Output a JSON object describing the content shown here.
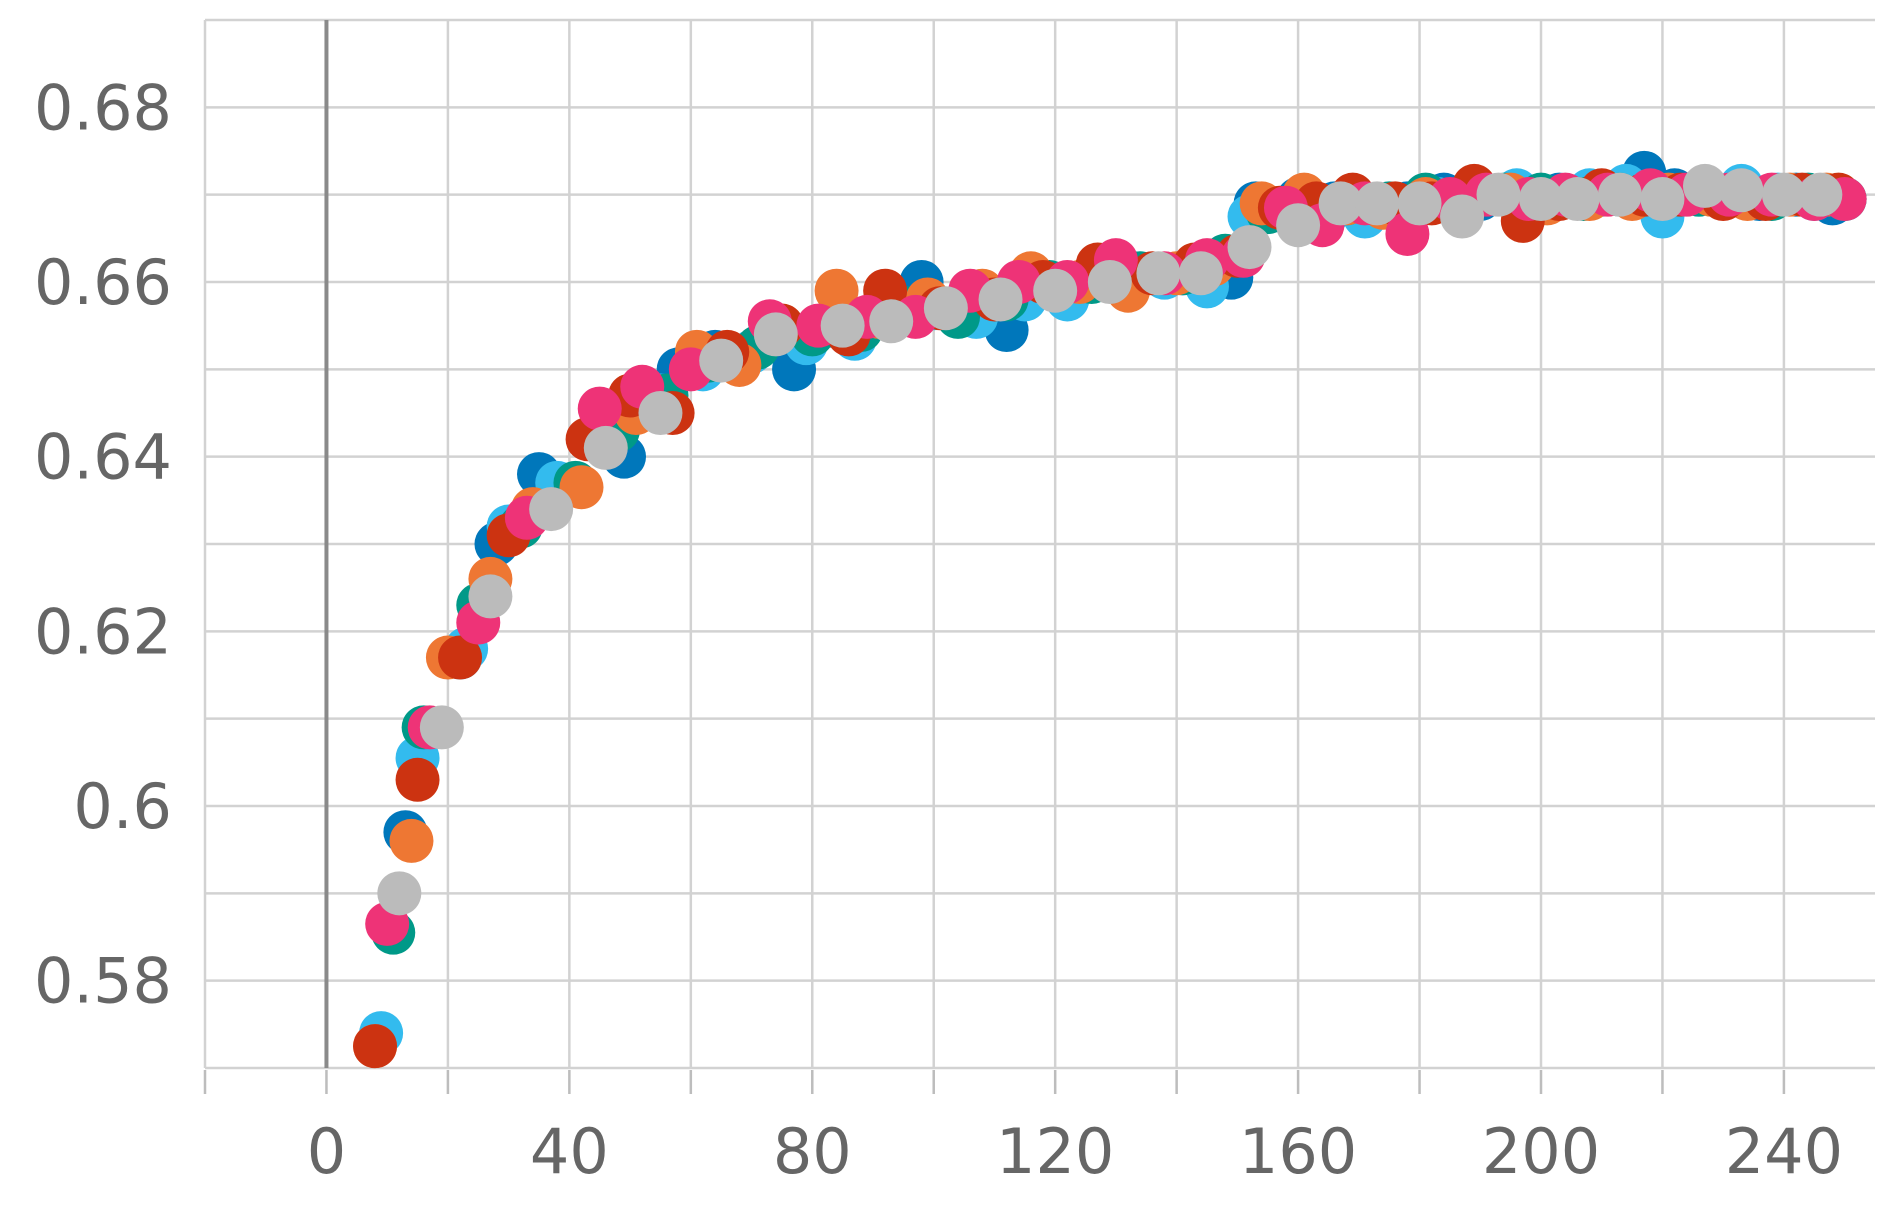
{
  "chart_data": {
    "type": "scatter",
    "title": "",
    "xlabel": "",
    "ylabel": "",
    "xlim": [
      -20,
      255
    ],
    "ylim": [
      0.57,
      0.69
    ],
    "x_ticks": [
      0,
      40,
      80,
      120,
      160,
      200,
      240
    ],
    "x_tick_labels": [
      "0",
      "40",
      "80",
      "120",
      "160",
      "200",
      "240"
    ],
    "y_ticks": [
      0.58,
      0.6,
      0.62,
      0.64,
      0.66,
      0.68
    ],
    "y_tick_labels": [
      "0.58",
      "0.6",
      "0.62",
      "0.64",
      "0.66",
      "0.68"
    ],
    "grid": true,
    "legend": "none",
    "series": [
      {
        "color": "#0077BB",
        "x": [
          13,
          22,
          28,
          35,
          49,
          53,
          58,
          64,
          72,
          77,
          83,
          90,
          98,
          103,
          112,
          118,
          125,
          133,
          141,
          149,
          153,
          160,
          166,
          172,
          178,
          184,
          190,
          197,
          203,
          210,
          217,
          222,
          229,
          236,
          242,
          248
        ],
        "y": [
          0.597,
          0.617,
          0.63,
          0.638,
          0.64,
          0.647,
          0.65,
          0.652,
          0.653,
          0.65,
          0.655,
          0.656,
          0.66,
          0.657,
          0.6545,
          0.66,
          0.66,
          0.661,
          0.661,
          0.6605,
          0.669,
          0.6695,
          0.669,
          0.6685,
          0.669,
          0.67,
          0.6695,
          0.67,
          0.67,
          0.67,
          0.6725,
          0.6705,
          0.67,
          0.6695,
          0.67,
          0.669
        ]
      },
      {
        "color": "#33BBEE",
        "x": [
          9,
          15,
          23,
          30,
          38,
          46,
          55,
          62,
          70,
          79,
          87,
          94,
          100,
          107,
          115,
          122,
          130,
          138,
          145,
          152,
          158,
          165,
          171,
          177,
          183,
          190,
          196,
          202,
          208,
          214,
          220,
          226,
          233,
          239,
          245,
          250
        ],
        "y": [
          0.574,
          0.6055,
          0.618,
          0.632,
          0.637,
          0.643,
          0.647,
          0.65,
          0.652,
          0.653,
          0.6535,
          0.656,
          0.657,
          0.656,
          0.658,
          0.658,
          0.66,
          0.6605,
          0.6595,
          0.6675,
          0.668,
          0.668,
          0.6675,
          0.668,
          0.6695,
          0.67,
          0.6705,
          0.6695,
          0.6705,
          0.671,
          0.6675,
          0.67,
          0.671,
          0.67,
          0.6695,
          0.6695
        ]
      },
      {
        "color": "#009988",
        "x": [
          11,
          16,
          25,
          32,
          41,
          48,
          56,
          63,
          71,
          80,
          88,
          96,
          104,
          112,
          119,
          126,
          134,
          141,
          148,
          155,
          162,
          168,
          175,
          181,
          187,
          194,
          200,
          207,
          213,
          219,
          226,
          232,
          238,
          244,
          250
        ],
        "y": [
          0.5855,
          0.609,
          0.623,
          0.632,
          0.637,
          0.643,
          0.647,
          0.651,
          0.6525,
          0.654,
          0.6545,
          0.657,
          0.656,
          0.658,
          0.66,
          0.66,
          0.661,
          0.661,
          0.663,
          0.668,
          0.669,
          0.669,
          0.669,
          0.67,
          0.6695,
          0.67,
          0.67,
          0.6695,
          0.67,
          0.67,
          0.67,
          0.67,
          0.6695,
          0.67,
          0.6695
        ]
      },
      {
        "color": "#EE7733",
        "x": [
          8,
          14,
          20,
          27,
          34,
          42,
          51,
          61,
          68,
          75,
          84,
          91,
          99,
          108,
          116,
          124,
          132,
          140,
          146,
          154,
          161,
          168,
          174,
          181,
          188,
          195,
          201,
          208,
          215,
          221,
          228,
          234,
          241,
          247
        ],
        "y": [
          0.5725,
          0.596,
          0.617,
          0.626,
          0.634,
          0.6365,
          0.645,
          0.652,
          0.6505,
          0.655,
          0.659,
          0.656,
          0.658,
          0.659,
          0.661,
          0.66,
          0.659,
          0.661,
          0.662,
          0.669,
          0.67,
          0.669,
          0.6685,
          0.6695,
          0.67,
          0.67,
          0.669,
          0.6695,
          0.6695,
          0.67,
          0.67,
          0.6695,
          0.67,
          0.67
        ]
      },
      {
        "color": "#CC3311",
        "x": [
          8,
          15,
          22,
          30,
          43,
          50,
          57,
          66,
          75,
          86,
          92,
          101,
          110,
          118,
          127,
          136,
          143,
          150,
          157,
          163,
          169,
          176,
          182,
          189,
          197,
          203,
          210,
          217,
          223,
          230,
          237,
          243,
          249
        ],
        "y": [
          0.5725,
          0.603,
          0.617,
          0.631,
          0.642,
          0.647,
          0.645,
          0.652,
          0.655,
          0.654,
          0.659,
          0.657,
          0.658,
          0.66,
          0.662,
          0.661,
          0.662,
          0.663,
          0.6685,
          0.669,
          0.67,
          0.669,
          0.669,
          0.671,
          0.667,
          0.6695,
          0.6705,
          0.67,
          0.67,
          0.6695,
          0.6695,
          0.67,
          0.67
        ]
      },
      {
        "color": "#EE3377",
        "x": [
          10,
          17,
          25,
          33,
          45,
          52,
          60,
          73,
          81,
          89,
          97,
          106,
          114,
          122,
          130,
          138,
          145,
          151,
          158,
          164,
          171,
          178,
          185,
          191,
          198,
          204,
          211,
          218,
          224,
          231,
          238,
          245,
          250
        ],
        "y": [
          0.5865,
          0.609,
          0.621,
          0.633,
          0.6455,
          0.648,
          0.65,
          0.6555,
          0.655,
          0.656,
          0.656,
          0.659,
          0.66,
          0.66,
          0.6625,
          0.661,
          0.6625,
          0.663,
          0.6685,
          0.6665,
          0.669,
          0.6655,
          0.6695,
          0.67,
          0.6695,
          0.67,
          0.67,
          0.6705,
          0.67,
          0.67,
          0.67,
          0.6695,
          0.6695
        ]
      },
      {
        "color": "#BBBBBB",
        "x": [
          12,
          19,
          27,
          37,
          46,
          55,
          65,
          74,
          85,
          93,
          102,
          111,
          120,
          129,
          137,
          144,
          152,
          160,
          167,
          173,
          180,
          187,
          193,
          200,
          206,
          213,
          220,
          227,
          233,
          240,
          246
        ],
        "y": [
          0.59,
          0.609,
          0.624,
          0.634,
          0.641,
          0.645,
          0.651,
          0.654,
          0.655,
          0.6555,
          0.657,
          0.658,
          0.659,
          0.66,
          0.661,
          0.661,
          0.664,
          0.6665,
          0.669,
          0.669,
          0.669,
          0.6675,
          0.67,
          0.6695,
          0.6695,
          0.67,
          0.6695,
          0.671,
          0.6705,
          0.67,
          0.67
        ]
      }
    ]
  }
}
